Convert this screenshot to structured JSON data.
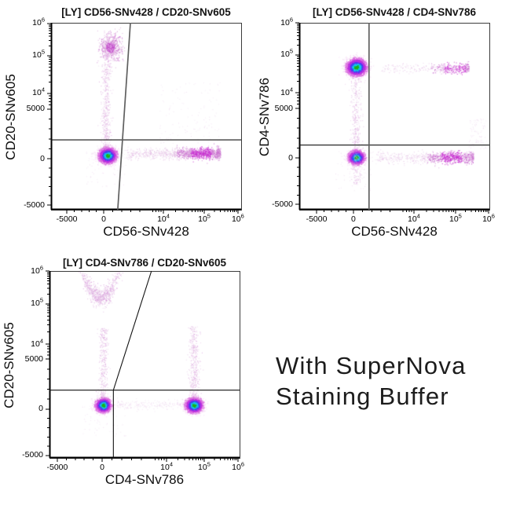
{
  "page": {
    "background": "#ffffff"
  },
  "caption": {
    "text": "With SuperNova\nStaining Buffer"
  },
  "palette": {
    "density_core": [
      "#1db119",
      "#13c5ea",
      "#4a3ff0",
      "#bd2fe0",
      "#d969dd",
      "#eec0ed"
    ],
    "dot_mix": [
      "#dba8dc",
      "#cd7bd2",
      "#c14bca"
    ],
    "dot_faint": [
      "#e3bfe4",
      "#d9a6da"
    ],
    "dot_bright": "#c92fd2",
    "cluster_mid": "#c452cc",
    "axis": "#111111",
    "gate_gray": "#5f5f5f"
  },
  "chart_data": [
    {
      "type": "scatter",
      "title": "[LY] CD56-SNv428 / CD20-SNv605",
      "xlabel": "CD56-SNv428",
      "ylabel": "CD20-SNv605",
      "x_ticks": [
        {
          "v": -5000,
          "label": "-5000"
        },
        {
          "v": 0,
          "label": "0"
        },
        {
          "v": 10000,
          "label": "10^4"
        },
        {
          "v": 100000,
          "label": "10^5"
        },
        {
          "v": 1000000,
          "label": "10^6"
        }
      ],
      "y_ticks": [
        {
          "v": 1000000,
          "label": "10^6"
        },
        {
          "v": 100000,
          "label": "10^5"
        },
        {
          "v": 10000,
          "label": "10^4"
        },
        {
          "v": 5000,
          "label": "5000"
        },
        {
          "v": 0,
          "label": "0"
        },
        {
          "v": -5000,
          "label": "-5000"
        }
      ],
      "x_anchors": [
        [
          -5000,
          0.083
        ],
        [
          0,
          0.277
        ],
        [
          5000,
          0.515
        ],
        [
          10000,
          0.591
        ],
        [
          100000,
          0.806
        ],
        [
          1000000,
          0.983
        ]
      ],
      "y_anchors": [
        [
          -5000,
          0.975
        ],
        [
          0,
          0.727
        ],
        [
          5000,
          0.462
        ],
        [
          10000,
          0.378
        ],
        [
          100000,
          0.176
        ],
        [
          1000000,
          0.004
        ]
      ],
      "gates": [
        {
          "type": "hline",
          "y": 1900,
          "style": "black"
        },
        {
          "type": "segment",
          "x1": 1550,
          "y1": "min",
          "x2": 2950,
          "y2": "max",
          "style": "gray"
        }
      ],
      "populations": [
        {
          "name": "CD56-CD20- lymphocytes",
          "type": "core",
          "x": 400,
          "y": 350,
          "sx": 5.2,
          "sy": 4.6,
          "n": 3200
        },
        {
          "name": "CD20+ B cells",
          "type": "cluster",
          "x": 700,
          "y": 185000,
          "sx": 7,
          "sy": 8.5,
          "n": 650
        },
        {
          "name": "CD20 spread column",
          "type": "vband",
          "x": 250,
          "sx": 3.2,
          "y0": 900,
          "y1": 60000,
          "n": 430,
          "intensity": "faint"
        },
        {
          "name": "CD56+ NK cells",
          "type": "hband",
          "y": 550,
          "sy": 3.4,
          "x0": 2500,
          "x1": 300000,
          "peak": 85000,
          "n": 1500
        },
        {
          "name": "upper right haze",
          "type": "box",
          "x0": 8000,
          "x1": 300000,
          "y0": 1500,
          "y1": 20000,
          "n": 120,
          "intensity": "veryfaint"
        },
        {
          "name": "sub-zero noise",
          "type": "box",
          "x0": -2500,
          "x1": 2500,
          "y0": -3000,
          "y1": 900,
          "n": 80,
          "intensity": "veryfaint"
        }
      ]
    },
    {
      "type": "scatter",
      "title": "[LY] CD56-SNv428 / CD4-SNv786",
      "xlabel": "CD56-SNv428",
      "ylabel": "CD4-SNv786",
      "x_ticks": [
        {
          "v": -5000,
          "label": "-5000"
        },
        {
          "v": 0,
          "label": "0"
        },
        {
          "v": 10000,
          "label": "10^4"
        },
        {
          "v": 100000,
          "label": "10^5"
        },
        {
          "v": 1000000,
          "label": "10^6"
        }
      ],
      "y_ticks": [
        {
          "v": 1000000,
          "label": "10^6"
        },
        {
          "v": 100000,
          "label": "10^5"
        },
        {
          "v": 10000,
          "label": "10^4"
        },
        {
          "v": 5000,
          "label": "5000"
        },
        {
          "v": 0,
          "label": "0"
        },
        {
          "v": -5000,
          "label": "-5000"
        }
      ],
      "x_anchors": [
        [
          -5000,
          0.091
        ],
        [
          0,
          0.285
        ],
        [
          5000,
          0.526
        ],
        [
          10000,
          0.603
        ],
        [
          100000,
          0.822
        ],
        [
          1000000,
          0.996
        ]
      ],
      "y_anchors": [
        [
          -5000,
          0.971
        ],
        [
          0,
          0.723
        ],
        [
          5000,
          0.458
        ],
        [
          10000,
          0.374
        ],
        [
          100000,
          0.172
        ],
        [
          1000000,
          0.0
        ]
      ],
      "gates": [
        {
          "type": "hline",
          "y": 1300,
          "style": "black"
        },
        {
          "type": "segment",
          "x1": 1700,
          "y1": "min",
          "x2": 1700,
          "y2": "max",
          "style": "gray"
        }
      ],
      "populations": [
        {
          "name": "CD4+ T cells",
          "type": "core",
          "x": 300,
          "y": 48000,
          "sx": 6.0,
          "sy": 5.0,
          "n": 3400
        },
        {
          "name": "CD4-CD56- lymphocytes",
          "type": "core",
          "x": 300,
          "y": 80,
          "sx": 4.8,
          "sy": 4.2,
          "n": 2200
        },
        {
          "name": "CD56+ NK cells",
          "type": "hband",
          "y": 80,
          "sy": 3.4,
          "x0": 2500,
          "x1": 350000,
          "peak": 80000,
          "n": 1000
        },
        {
          "name": "CD56+CD4dim cells",
          "type": "hband",
          "y": 45000,
          "sy": 3.2,
          "x0": 3000,
          "x1": 250000,
          "peak": 95000,
          "n": 420,
          "intensity": "faint"
        },
        {
          "name": "CD4 spread column",
          "type": "vband",
          "x": 250,
          "sx": 3.4,
          "y0": -2800,
          "y1": 25000,
          "n": 400,
          "intensity": "faint"
        },
        {
          "name": "right edge smudge",
          "type": "box",
          "x0": 250000,
          "x1": 850000,
          "y0": 900,
          "y1": 4000,
          "n": 90,
          "intensity": "veryfaint"
        },
        {
          "name": "noise",
          "type": "box",
          "x0": -2500,
          "x1": 2500,
          "y0": -3500,
          "y1": 900,
          "n": 70,
          "intensity": "veryfaint"
        }
      ]
    },
    {
      "type": "scatter",
      "title": "[LY] CD4-SNv786 / CD20-SNv605",
      "xlabel": "CD4-SNv786",
      "ylabel": "CD20-SNv605",
      "x_ticks": [
        {
          "v": -5000,
          "label": "-5000"
        },
        {
          "v": 0,
          "label": "0"
        },
        {
          "v": 10000,
          "label": "10^4"
        },
        {
          "v": 100000,
          "label": "10^5"
        },
        {
          "v": 1000000,
          "label": "10^6"
        }
      ],
      "y_ticks": [
        {
          "v": 1000000,
          "label": "10^6"
        },
        {
          "v": 100000,
          "label": "10^5"
        },
        {
          "v": 10000,
          "label": "10^4"
        },
        {
          "v": 5000,
          "label": "5000"
        },
        {
          "v": 0,
          "label": "0"
        },
        {
          "v": -5000,
          "label": "-5000"
        }
      ],
      "x_anchors": [
        [
          -5000,
          0.041
        ],
        [
          0,
          0.277
        ],
        [
          5000,
          0.534
        ],
        [
          10000,
          0.616
        ],
        [
          100000,
          0.814
        ],
        [
          1000000,
          0.992
        ]
      ],
      "y_anchors": [
        [
          -5000,
          0.987
        ],
        [
          0,
          0.739
        ],
        [
          5000,
          0.471
        ],
        [
          10000,
          0.391
        ],
        [
          100000,
          0.176
        ],
        [
          1000000,
          0.0
        ]
      ],
      "gates": [
        {
          "type": "hline",
          "y": 1900,
          "style": "black"
        },
        {
          "type": "segment",
          "x1": 1150,
          "y1": "min",
          "x2": 1150,
          "y2": 1900,
          "style": "black"
        },
        {
          "type": "segment",
          "x1": 1150,
          "y1": 1900,
          "x2": 5100,
          "y2": "max",
          "style": "black"
        }
      ],
      "populations": [
        {
          "name": "CD4-CD20- lymphocytes",
          "type": "core",
          "x": 80,
          "y": 420,
          "sx": 4.6,
          "sy": 4.2,
          "n": 2400
        },
        {
          "name": "CD4+ T cells",
          "type": "core",
          "x": 53000,
          "y": 420,
          "sx": 5.2,
          "sy": 4.4,
          "n": 2600
        },
        {
          "name": "CD20+ B cells spread arc",
          "type": "arc",
          "x": -200,
          "y": 160000,
          "sx": 15,
          "sy": 6.5,
          "curve": 3.5,
          "n": 800,
          "intensity": "faint"
        },
        {
          "name": "CD20 spread column neg",
          "type": "vband",
          "x": 100,
          "sx": 3.0,
          "y0": 1000,
          "y1": 25000,
          "n": 320,
          "intensity": "faint"
        },
        {
          "name": "CD20 spread column CD4+",
          "type": "vband",
          "x": 53000,
          "sx": 3.4,
          "y0": 1000,
          "y1": 28000,
          "n": 400,
          "intensity": "faint"
        },
        {
          "name": "mid band",
          "type": "hband",
          "y": 450,
          "sy": 3.0,
          "x0": 1500,
          "x1": 30000,
          "peak": null,
          "n": 200,
          "intensity": "veryfaint"
        },
        {
          "name": "noise",
          "type": "box",
          "x0": -2500,
          "x1": 2500,
          "y0": -3000,
          "y1": 900,
          "n": 60,
          "intensity": "veryfaint"
        }
      ]
    }
  ]
}
